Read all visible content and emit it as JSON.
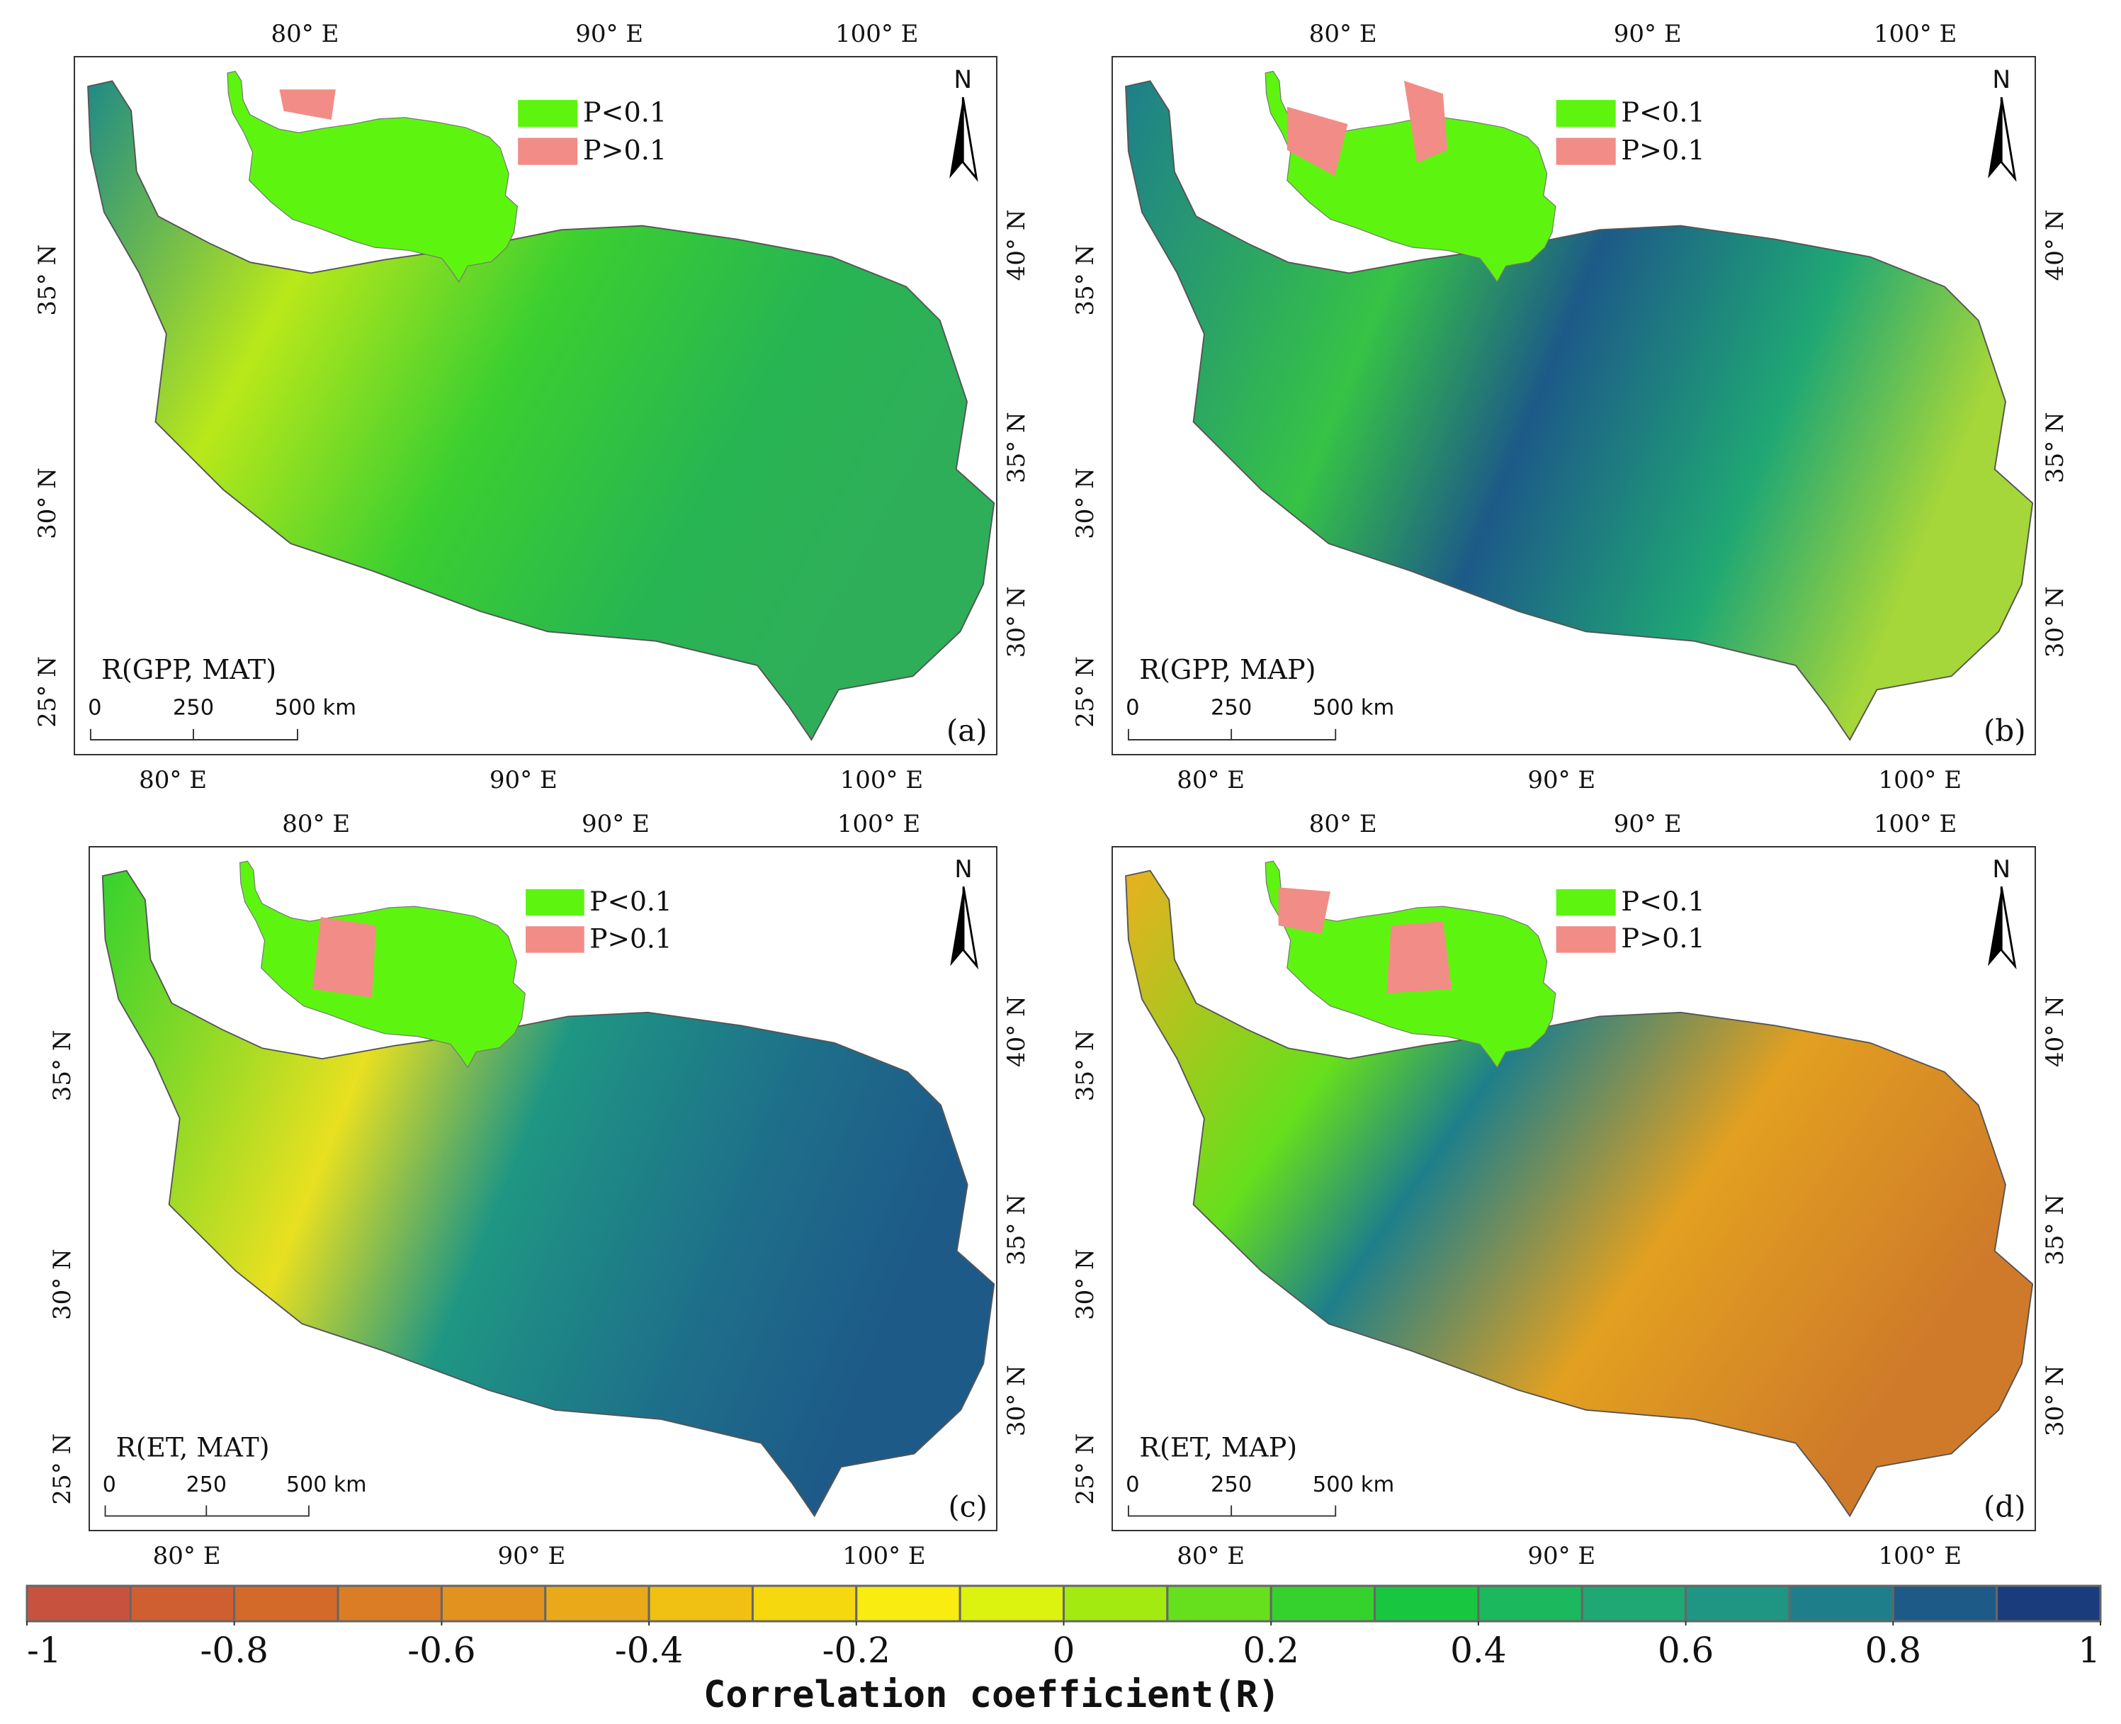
{
  "panels": [
    {
      "label": "R(GPP, MAT)",
      "tag": "(a)",
      "top_ticks": [
        "80° E",
        "90° E",
        "100° E"
      ],
      "bottom_ticks": [
        "80° E",
        "90° E",
        "100° E"
      ],
      "left_ticks": [
        "35° N",
        "30° N",
        "25° N"
      ],
      "right_ticks": [
        "40° N",
        "35° N",
        "30° N"
      ]
    },
    {
      "label": "R(GPP, MAP)",
      "tag": "(b)",
      "top_ticks": [
        "80° E",
        "90° E",
        "100° E"
      ],
      "bottom_ticks": [
        "80° E",
        "90° E",
        "100° E"
      ],
      "left_ticks": [
        "35° N",
        "30° N",
        "25° N"
      ],
      "right_ticks": [
        "40° N",
        "35° N",
        "30° N"
      ]
    },
    {
      "label": "R(ET, MAT)",
      "tag": "(c)",
      "top_ticks": [
        "80° E",
        "90° E",
        "100° E"
      ],
      "bottom_ticks": [
        "80° E",
        "90° E",
        "100° E"
      ],
      "left_ticks": [
        "35° N",
        "30° N",
        "25° N"
      ],
      "right_ticks": [
        "40° N",
        "35° N",
        "30° N"
      ]
    },
    {
      "label": "R(ET, MAP)",
      "tag": "(d)",
      "top_ticks": [
        "80° E",
        "90° E",
        "100° E"
      ],
      "bottom_ticks": [
        "80° E",
        "90° E",
        "100° E"
      ],
      "left_ticks": [
        "35° N",
        "30° N",
        "25° N"
      ],
      "right_ticks": [
        "40° N",
        "35° N",
        "30° N"
      ]
    }
  ],
  "legend": {
    "significant": "P<0.1",
    "insignificant": "P>0.1"
  },
  "north": "N",
  "scale_bar": [
    "0",
    "250",
    "500 km"
  ],
  "colorbar": {
    "title": "Correlation coefficient(R)",
    "lim": [
      -1,
      1
    ],
    "ticks": [
      -1,
      -0.8,
      -0.6,
      -0.4,
      -0.2,
      0,
      0.2,
      0.4,
      0.6,
      0.8,
      1
    ],
    "colors": [
      "#c7523d",
      "#cf5e30",
      "#d46a2a",
      "#db7d24",
      "#e2921e",
      "#e9a918",
      "#f0c013",
      "#f6d80e",
      "#f8ec10",
      "#dcf20f",
      "#a3ea10",
      "#66df1c",
      "#35d22e",
      "#19c63f",
      "#1cb85e",
      "#1fa774",
      "#1f9683",
      "#1e7f8a",
      "#1d5a88",
      "#1b3c7c"
    ]
  }
}
